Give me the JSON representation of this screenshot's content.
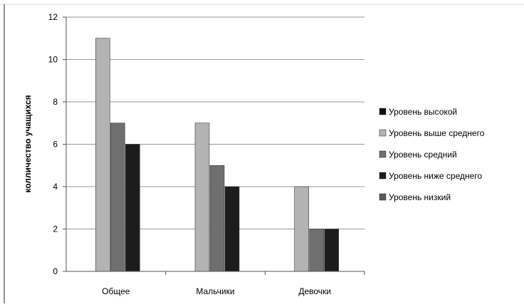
{
  "chart_data": {
    "type": "bar",
    "title": "",
    "xlabel": "",
    "ylabel": "колличество учащихся",
    "categories": [
      "Общее",
      "Мальчики",
      "Девочки"
    ],
    "ylim": [
      0,
      12
    ],
    "yticks": [
      0,
      2,
      4,
      6,
      8,
      10,
      12
    ],
    "grid": true,
    "legend_position": "right",
    "series": [
      {
        "name": "Уровень высокой",
        "color": "#111111",
        "values": [
          0,
          0,
          0
        ]
      },
      {
        "name": "Уровень выше среднего",
        "color": "#b3b3b3",
        "values": [
          11,
          7,
          4
        ]
      },
      {
        "name": "Уровень средний",
        "color": "#6f6f6f",
        "values": [
          7,
          5,
          2
        ]
      },
      {
        "name": "Уровень ниже среднего",
        "color": "#1c1c1c",
        "values": [
          6,
          4,
          2
        ]
      },
      {
        "name": "Уровень низкий",
        "color": "#5a5a5a",
        "values": [
          0,
          0,
          0
        ]
      }
    ]
  }
}
